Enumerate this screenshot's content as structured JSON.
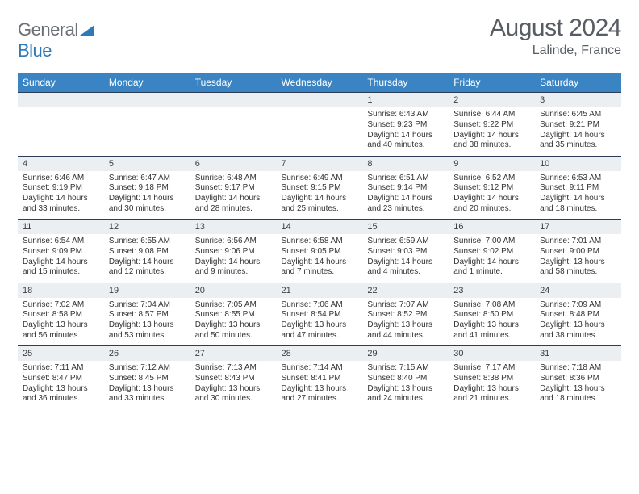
{
  "brand": {
    "part1": "General",
    "part2": "Blue"
  },
  "title": "August 2024",
  "location": "Lalinde, France",
  "colors": {
    "header_bg": "#3a84c3",
    "header_text": "#ffffff",
    "date_row_bg": "#eceff2",
    "row_border": "#2b3d57",
    "body_text": "#333333",
    "title_text": "#585c63",
    "logo_gray": "#6b6f76",
    "logo_blue": "#2f79b8"
  },
  "dayNames": [
    "Sunday",
    "Monday",
    "Tuesday",
    "Wednesday",
    "Thursday",
    "Friday",
    "Saturday"
  ],
  "weeks": [
    {
      "dates": [
        "",
        "",
        "",
        "",
        "1",
        "2",
        "3"
      ],
      "info": [
        null,
        null,
        null,
        null,
        {
          "sunrise": "Sunrise: 6:43 AM",
          "sunset": "Sunset: 9:23 PM",
          "day1": "Daylight: 14 hours",
          "day2": "and 40 minutes."
        },
        {
          "sunrise": "Sunrise: 6:44 AM",
          "sunset": "Sunset: 9:22 PM",
          "day1": "Daylight: 14 hours",
          "day2": "and 38 minutes."
        },
        {
          "sunrise": "Sunrise: 6:45 AM",
          "sunset": "Sunset: 9:21 PM",
          "day1": "Daylight: 14 hours",
          "day2": "and 35 minutes."
        }
      ]
    },
    {
      "dates": [
        "4",
        "5",
        "6",
        "7",
        "8",
        "9",
        "10"
      ],
      "info": [
        {
          "sunrise": "Sunrise: 6:46 AM",
          "sunset": "Sunset: 9:19 PM",
          "day1": "Daylight: 14 hours",
          "day2": "and 33 minutes."
        },
        {
          "sunrise": "Sunrise: 6:47 AM",
          "sunset": "Sunset: 9:18 PM",
          "day1": "Daylight: 14 hours",
          "day2": "and 30 minutes."
        },
        {
          "sunrise": "Sunrise: 6:48 AM",
          "sunset": "Sunset: 9:17 PM",
          "day1": "Daylight: 14 hours",
          "day2": "and 28 minutes."
        },
        {
          "sunrise": "Sunrise: 6:49 AM",
          "sunset": "Sunset: 9:15 PM",
          "day1": "Daylight: 14 hours",
          "day2": "and 25 minutes."
        },
        {
          "sunrise": "Sunrise: 6:51 AM",
          "sunset": "Sunset: 9:14 PM",
          "day1": "Daylight: 14 hours",
          "day2": "and 23 minutes."
        },
        {
          "sunrise": "Sunrise: 6:52 AM",
          "sunset": "Sunset: 9:12 PM",
          "day1": "Daylight: 14 hours",
          "day2": "and 20 minutes."
        },
        {
          "sunrise": "Sunrise: 6:53 AM",
          "sunset": "Sunset: 9:11 PM",
          "day1": "Daylight: 14 hours",
          "day2": "and 18 minutes."
        }
      ]
    },
    {
      "dates": [
        "11",
        "12",
        "13",
        "14",
        "15",
        "16",
        "17"
      ],
      "info": [
        {
          "sunrise": "Sunrise: 6:54 AM",
          "sunset": "Sunset: 9:09 PM",
          "day1": "Daylight: 14 hours",
          "day2": "and 15 minutes."
        },
        {
          "sunrise": "Sunrise: 6:55 AM",
          "sunset": "Sunset: 9:08 PM",
          "day1": "Daylight: 14 hours",
          "day2": "and 12 minutes."
        },
        {
          "sunrise": "Sunrise: 6:56 AM",
          "sunset": "Sunset: 9:06 PM",
          "day1": "Daylight: 14 hours",
          "day2": "and 9 minutes."
        },
        {
          "sunrise": "Sunrise: 6:58 AM",
          "sunset": "Sunset: 9:05 PM",
          "day1": "Daylight: 14 hours",
          "day2": "and 7 minutes."
        },
        {
          "sunrise": "Sunrise: 6:59 AM",
          "sunset": "Sunset: 9:03 PM",
          "day1": "Daylight: 14 hours",
          "day2": "and 4 minutes."
        },
        {
          "sunrise": "Sunrise: 7:00 AM",
          "sunset": "Sunset: 9:02 PM",
          "day1": "Daylight: 14 hours",
          "day2": "and 1 minute."
        },
        {
          "sunrise": "Sunrise: 7:01 AM",
          "sunset": "Sunset: 9:00 PM",
          "day1": "Daylight: 13 hours",
          "day2": "and 58 minutes."
        }
      ]
    },
    {
      "dates": [
        "18",
        "19",
        "20",
        "21",
        "22",
        "23",
        "24"
      ],
      "info": [
        {
          "sunrise": "Sunrise: 7:02 AM",
          "sunset": "Sunset: 8:58 PM",
          "day1": "Daylight: 13 hours",
          "day2": "and 56 minutes."
        },
        {
          "sunrise": "Sunrise: 7:04 AM",
          "sunset": "Sunset: 8:57 PM",
          "day1": "Daylight: 13 hours",
          "day2": "and 53 minutes."
        },
        {
          "sunrise": "Sunrise: 7:05 AM",
          "sunset": "Sunset: 8:55 PM",
          "day1": "Daylight: 13 hours",
          "day2": "and 50 minutes."
        },
        {
          "sunrise": "Sunrise: 7:06 AM",
          "sunset": "Sunset: 8:54 PM",
          "day1": "Daylight: 13 hours",
          "day2": "and 47 minutes."
        },
        {
          "sunrise": "Sunrise: 7:07 AM",
          "sunset": "Sunset: 8:52 PM",
          "day1": "Daylight: 13 hours",
          "day2": "and 44 minutes."
        },
        {
          "sunrise": "Sunrise: 7:08 AM",
          "sunset": "Sunset: 8:50 PM",
          "day1": "Daylight: 13 hours",
          "day2": "and 41 minutes."
        },
        {
          "sunrise": "Sunrise: 7:09 AM",
          "sunset": "Sunset: 8:48 PM",
          "day1": "Daylight: 13 hours",
          "day2": "and 38 minutes."
        }
      ]
    },
    {
      "dates": [
        "25",
        "26",
        "27",
        "28",
        "29",
        "30",
        "31"
      ],
      "info": [
        {
          "sunrise": "Sunrise: 7:11 AM",
          "sunset": "Sunset: 8:47 PM",
          "day1": "Daylight: 13 hours",
          "day2": "and 36 minutes."
        },
        {
          "sunrise": "Sunrise: 7:12 AM",
          "sunset": "Sunset: 8:45 PM",
          "day1": "Daylight: 13 hours",
          "day2": "and 33 minutes."
        },
        {
          "sunrise": "Sunrise: 7:13 AM",
          "sunset": "Sunset: 8:43 PM",
          "day1": "Daylight: 13 hours",
          "day2": "and 30 minutes."
        },
        {
          "sunrise": "Sunrise: 7:14 AM",
          "sunset": "Sunset: 8:41 PM",
          "day1": "Daylight: 13 hours",
          "day2": "and 27 minutes."
        },
        {
          "sunrise": "Sunrise: 7:15 AM",
          "sunset": "Sunset: 8:40 PM",
          "day1": "Daylight: 13 hours",
          "day2": "and 24 minutes."
        },
        {
          "sunrise": "Sunrise: 7:17 AM",
          "sunset": "Sunset: 8:38 PM",
          "day1": "Daylight: 13 hours",
          "day2": "and 21 minutes."
        },
        {
          "sunrise": "Sunrise: 7:18 AM",
          "sunset": "Sunset: 8:36 PM",
          "day1": "Daylight: 13 hours",
          "day2": "and 18 minutes."
        }
      ]
    }
  ]
}
